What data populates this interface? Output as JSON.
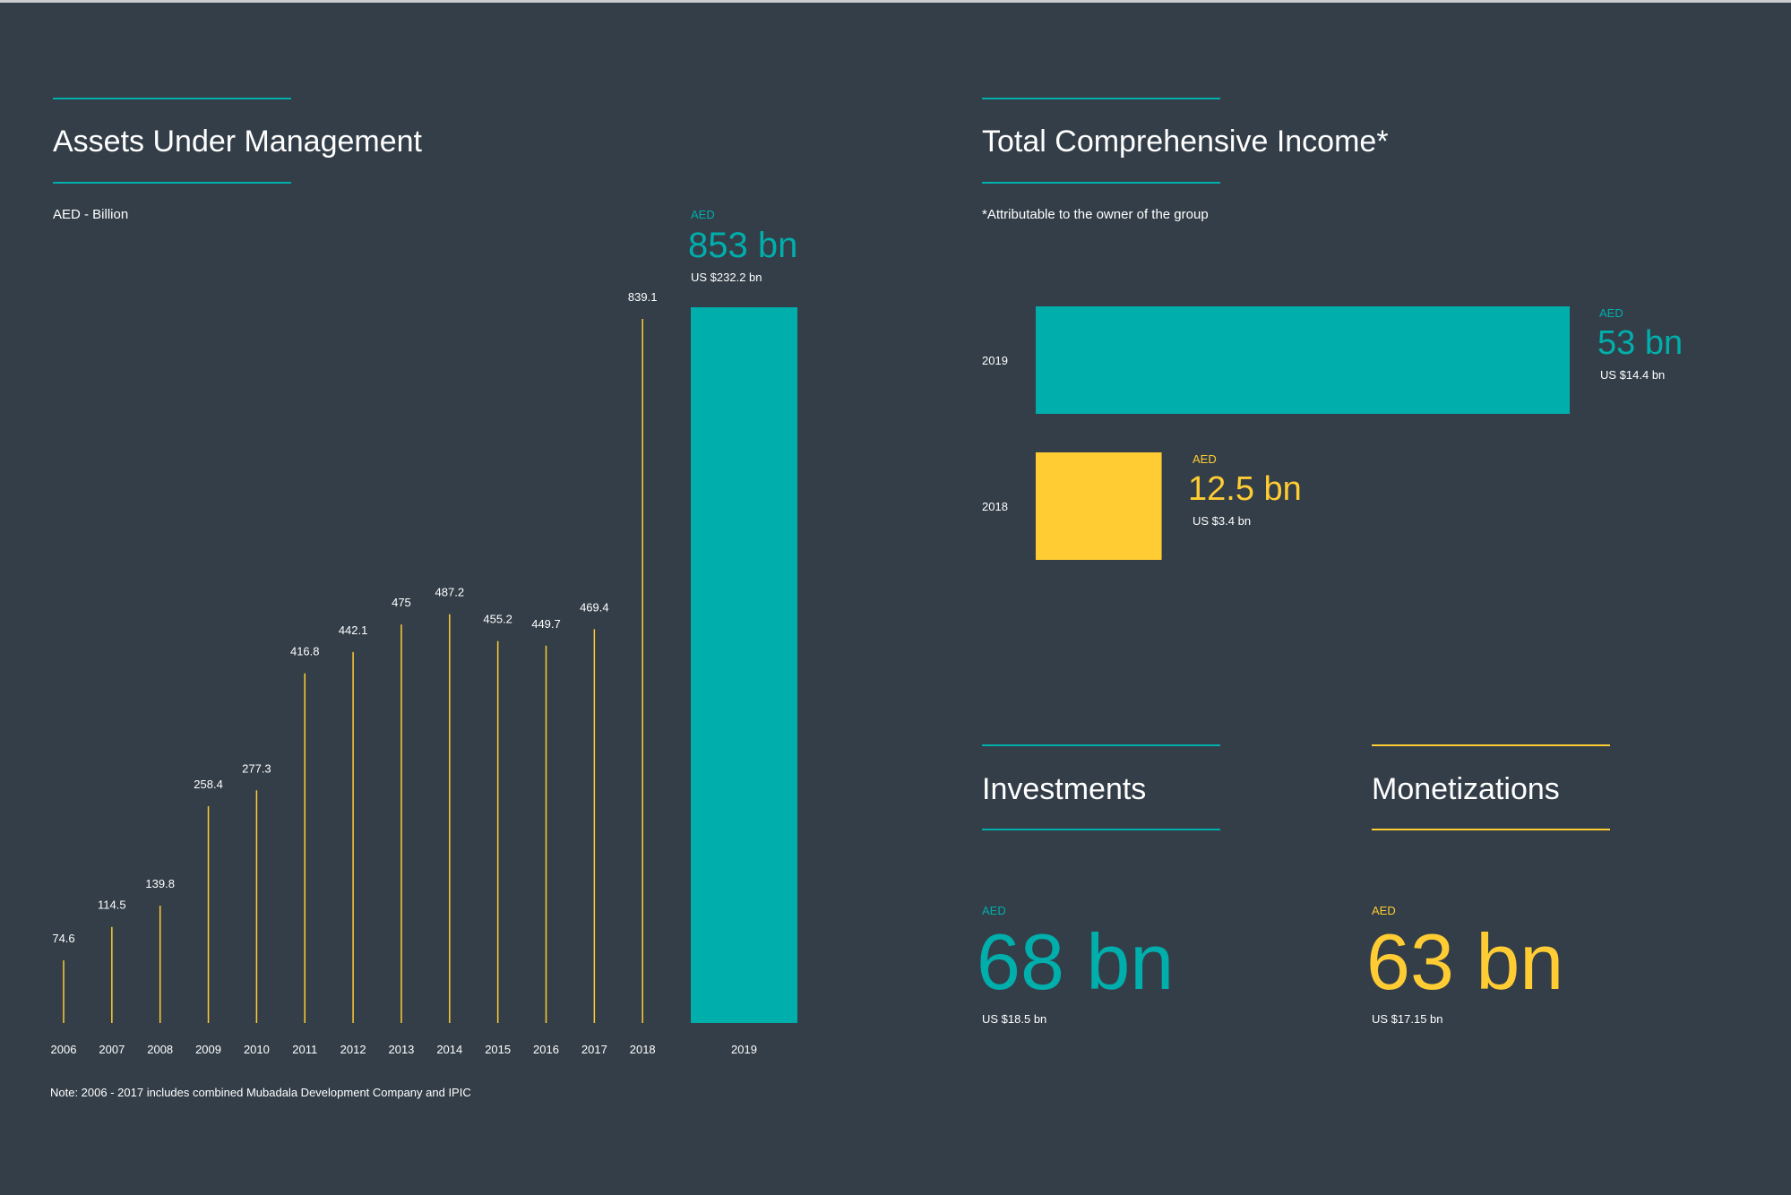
{
  "aum": {
    "title": "Assets Under Management",
    "unit_label": "AED - Billion",
    "highlight": {
      "currency": "AED",
      "value": "853 bn",
      "usd": "US $232.2 bn"
    },
    "note": "Note: 2006 - 2017 includes combined Mubadala Development Company and IPIC"
  },
  "tci": {
    "title": "Total Comprehensive Income*",
    "footnote": "*Attributable to the owner of the group",
    "bars": [
      {
        "year": "2019",
        "currency": "AED",
        "value": "53 bn",
        "usd": "US $14.4 bn"
      },
      {
        "year": "2018",
        "currency": "AED",
        "value": "12.5 bn",
        "usd": "US $3.4 bn"
      }
    ]
  },
  "investments": {
    "title": "Investments",
    "currency": "AED",
    "value": "68 bn",
    "usd": "US $18.5 bn"
  },
  "monetizations": {
    "title": "Monetizations",
    "currency": "AED",
    "value": "63 bn",
    "usd": "US $17.15 bn"
  },
  "colors": {
    "background": "#333e48",
    "teal": "#00aeac",
    "gold": "#ffcc33",
    "text": "#ffffff"
  },
  "chart_data": [
    {
      "type": "bar",
      "title": "Assets Under Management",
      "ylabel": "AED - Billion",
      "categories": [
        "2006",
        "2007",
        "2008",
        "2009",
        "2010",
        "2011",
        "2012",
        "2013",
        "2014",
        "2015",
        "2016",
        "2017",
        "2018",
        "2019"
      ],
      "values": [
        74.6,
        114.5,
        139.8,
        258.4,
        277.3,
        416.8,
        442.1,
        475,
        487.2,
        455.2,
        449.7,
        469.4,
        839.1,
        853
      ],
      "labels": [
        "74.6",
        "114.5",
        "139.8",
        "258.4",
        "277.3",
        "416.8",
        "442.1",
        "475",
        "487.2",
        "455.2",
        "449.7",
        "469.4",
        "839.1",
        ""
      ],
      "ylim": [
        0,
        853
      ],
      "grid": false,
      "legend": "none"
    },
    {
      "type": "bar",
      "orientation": "horizontal",
      "title": "Total Comprehensive Income*",
      "categories": [
        "2019",
        "2018"
      ],
      "values": [
        53,
        12.5
      ],
      "xlim": [
        0,
        53
      ],
      "grid": false,
      "legend": "none"
    }
  ]
}
